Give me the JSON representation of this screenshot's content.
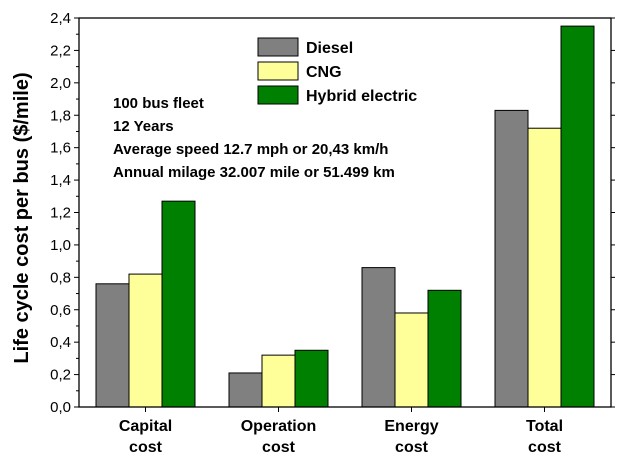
{
  "chart_data": {
    "type": "bar",
    "title": "",
    "xlabel": "",
    "ylabel": "Life cycle cost per bus ($/mile)",
    "ylim": [
      0,
      2.4
    ],
    "yticks": [
      "0,0",
      "0,2",
      "0,4",
      "0,6",
      "0,8",
      "1,0",
      "1,2",
      "1,4",
      "1,6",
      "1,8",
      "2,0",
      "2,2",
      "2,4"
    ],
    "categories": [
      [
        "Capital",
        "cost"
      ],
      [
        "Operation",
        "cost"
      ],
      [
        "Energy",
        "cost"
      ],
      [
        "Total",
        "cost"
      ]
    ],
    "series": [
      {
        "name": "Diesel",
        "color": "#808080",
        "values": [
          0.76,
          0.21,
          0.86,
          1.83
        ]
      },
      {
        "name": "CNG",
        "color": "#ffff99",
        "values": [
          0.82,
          0.32,
          0.58,
          1.72
        ]
      },
      {
        "name": "Hybrid electric",
        "color": "#008000",
        "values": [
          1.27,
          0.35,
          0.72,
          2.35
        ]
      }
    ],
    "legend_position": "top-center",
    "grid": false,
    "annotations": [
      "100 bus fleet",
      "12 Years",
      "Average speed 12.7 mph or 20,43 km/h",
      "Annual milage 32.007 mile or 51.499 km"
    ]
  }
}
